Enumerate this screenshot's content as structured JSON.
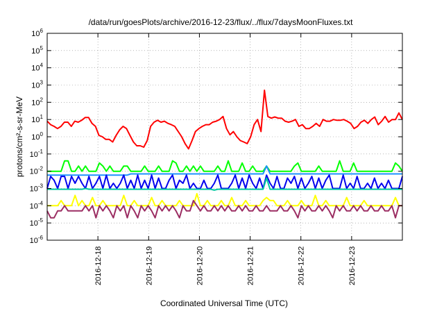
{
  "chart_data": {
    "type": "line",
    "title": "/data/run/goesPlots/archive/2016-12-23/flux/../flux/7daysMoonFluxes.txt",
    "xlabel": "Coordinated Universal Time (UTC)",
    "ylabel": "protons/cm²-s-sr-MeV",
    "yscale": "log",
    "ylim": [
      1e-06,
      1000000.0
    ],
    "y_tick_labels": [
      {
        "value": 1e-06,
        "base": "10",
        "exp": "-6"
      },
      {
        "value": 1e-05,
        "base": "10",
        "exp": "-5"
      },
      {
        "value": 0.0001,
        "base": "10",
        "exp": "-4"
      },
      {
        "value": 0.001,
        "base": "10",
        "exp": "-3"
      },
      {
        "value": 0.01,
        "base": "10",
        "exp": "-2"
      },
      {
        "value": 0.1,
        "base": "10",
        "exp": "-1"
      },
      {
        "value": 1,
        "base": "10",
        "exp": "0"
      },
      {
        "value": 10,
        "base": "10",
        "exp": "1"
      },
      {
        "value": 100,
        "base": "10",
        "exp": "2"
      },
      {
        "value": 1000,
        "base": "10",
        "exp": "3"
      },
      {
        "value": 10000,
        "base": "10",
        "exp": "4"
      },
      {
        "value": 100000,
        "base": "10",
        "exp": "5"
      },
      {
        "value": 1000000,
        "base": "10",
        "exp": "6"
      }
    ],
    "x_range": [
      "2016-12-17 00:00",
      "2016-12-24 00:00"
    ],
    "x_ticks": [
      "2016-12-18",
      "2016-12-19",
      "2016-12-20",
      "2016-12-21",
      "2016-12-22",
      "2016-12-23"
    ],
    "grid": true,
    "series": [
      {
        "color": "#ff0000",
        "values": [
          8,
          5,
          4,
          3,
          4,
          7,
          7,
          4,
          8,
          7,
          9,
          13,
          13,
          6,
          4,
          1.2,
          1,
          0.7,
          0.7,
          0.5,
          1.2,
          2.5,
          4,
          3,
          1.2,
          0.5,
          0.3,
          0.3,
          0.25,
          0.6,
          4,
          7,
          9,
          7,
          8,
          6,
          5,
          4,
          2,
          1,
          0.4,
          0.2,
          0.6,
          2,
          3,
          4,
          5,
          5,
          7,
          8,
          10,
          15,
          3,
          1.3,
          2,
          1,
          0.6,
          0.5,
          0.4,
          1,
          5,
          10,
          2,
          500,
          15,
          12,
          14,
          12,
          12,
          8,
          7,
          8,
          10,
          4,
          5,
          3,
          3,
          4,
          6,
          4,
          10,
          8,
          8,
          10,
          9,
          9,
          10,
          8,
          6,
          3,
          4,
          7,
          9,
          6,
          10,
          14,
          5,
          8,
          15,
          7,
          10,
          10,
          24,
          10
        ]
      },
      {
        "color": "#00ff00",
        "values": [
          0.01,
          0.01,
          0.01,
          0.01,
          0.01,
          0.04,
          0.04,
          0.01,
          0.01,
          0.02,
          0.01,
          0.02,
          0.01,
          0.01,
          0.01,
          0.03,
          0.02,
          0.01,
          0.02,
          0.01,
          0.01,
          0.01,
          0.02,
          0.02,
          0.01,
          0.01,
          0.01,
          0.01,
          0.02,
          0.01,
          0.01,
          0.01,
          0.02,
          0.01,
          0.01,
          0.01,
          0.04,
          0.03,
          0.01,
          0.01,
          0.02,
          0.01,
          0.02,
          0.01,
          0.02,
          0.01,
          0.01,
          0.01,
          0.01,
          0.02,
          0.01,
          0.01,
          0.04,
          0.01,
          0.01,
          0.01,
          0.03,
          0.01,
          0.01,
          0.02,
          0.01,
          0.01,
          0.01,
          0.02,
          0.01,
          0.01,
          0.01,
          0.01,
          0.01,
          0.01,
          0.01,
          0.02,
          0.03,
          0.01,
          0.01,
          0.01,
          0.01,
          0.01,
          0.02,
          0.01,
          0.01,
          0.01,
          0.01,
          0.01,
          0.04,
          0.01,
          0.01,
          0.01,
          0.03,
          0.01,
          0.01,
          0.01,
          0.01,
          0.01,
          0.01,
          0.01,
          0.01,
          0.01,
          0.01,
          0.01,
          0.03,
          0.02,
          0.01
        ]
      },
      {
        "color": "#1e90ff",
        "values": [
          0.006,
          0.006,
          0.006,
          0.006,
          0.006,
          0.006,
          0.006,
          0.006,
          0.006,
          0.006,
          0.006,
          0.006,
          0.006,
          0.006,
          0.006,
          0.006,
          0.006,
          0.006,
          0.006,
          0.006,
          0.006,
          0.006,
          0.006,
          0.006,
          0.007,
          0.007,
          0.007,
          0.007,
          0.007,
          0.007,
          0.007,
          0.007,
          0.007,
          0.007,
          0.007,
          0.007,
          0.007,
          0.007,
          0.007,
          0.007,
          0.007,
          0.007,
          0.007,
          0.007,
          0.007,
          0.007,
          0.007,
          0.007,
          0.007,
          0.007,
          0.007,
          0.007,
          0.007,
          0.007,
          0.007,
          0.007,
          0.007,
          0.007,
          0.007,
          0.007,
          0.007,
          0.007,
          0.007,
          0.02,
          0.007,
          0.007,
          0.007,
          0.007,
          0.007,
          0.007,
          0.007,
          0.007,
          0.007,
          0.007,
          0.007,
          0.007,
          0.007,
          0.007,
          0.007,
          0.007,
          0.007,
          0.007,
          0.007,
          0.007,
          0.007,
          0.007,
          0.007,
          0.007,
          0.007,
          0.007,
          0.007,
          0.007,
          0.007,
          0.007,
          0.007,
          0.007,
          0.007,
          0.007,
          0.007,
          0.007,
          0.007,
          0.007,
          0.007
        ]
      },
      {
        "color": "#0000ee",
        "values": [
          0.001,
          0.005,
          0.003,
          0.001,
          0.005,
          0.005,
          0.001,
          0.005,
          0.002,
          0.005,
          0.002,
          0.001,
          0.005,
          0.001,
          0.002,
          0.005,
          0.001,
          0.006,
          0.001,
          0.002,
          0.001,
          0.002,
          0.006,
          0.001,
          0.003,
          0.001,
          0.006,
          0.001,
          0.003,
          0.001,
          0.006,
          0.001,
          0.004,
          0.001,
          0.001,
          0.003,
          0.006,
          0.001,
          0.003,
          0.002,
          0.006,
          0.001,
          0.002,
          0.001,
          0.001,
          0.003,
          0.001,
          0.001,
          0.002,
          0.006,
          0.001,
          0.001,
          0.001,
          0.002,
          0.006,
          0.001,
          0.004,
          0.001,
          0.006,
          0.002,
          0.001,
          0.004,
          0.001,
          0.006,
          0.002,
          0.001,
          0.005,
          0.001,
          0.001,
          0.004,
          0.002,
          0.005,
          0.001,
          0.004,
          0.001,
          0.002,
          0.005,
          0.001,
          0.004,
          0.001,
          0.003,
          0.006,
          0.001,
          0.001,
          0.001,
          0.006,
          0.001,
          0.002,
          0.001,
          0.005,
          0.001,
          0.001,
          0.002,
          0.001,
          0.004,
          0.001,
          0.002,
          0.001,
          0.003,
          0.001,
          0.001,
          0.001,
          0.005
        ]
      },
      {
        "color": "#00c8a0",
        "values": [
          0.0009,
          0.0009,
          0.0009,
          0.0009,
          0.0009,
          0.0009,
          0.0009,
          0.0009,
          0.0009,
          0.0009,
          0.0009,
          0.001,
          0.0009,
          0.0009,
          0.0009,
          0.0009,
          0.0009,
          0.0009,
          0.0009,
          0.0009,
          0.0009,
          0.0009,
          0.0009,
          0.0009,
          0.0009,
          0.0009,
          0.0009,
          0.0009,
          0.0009,
          0.0009,
          0.0009,
          0.0009,
          0.0009,
          0.0009,
          0.0009,
          0.0009,
          0.0009,
          0.0009,
          0.0009,
          0.0009,
          0.0009,
          0.0009,
          0.0009,
          0.0009,
          0.0009,
          0.0009,
          0.0009,
          0.0009,
          0.0008,
          0.0009,
          0.0009,
          0.0009,
          0.0009,
          0.0009,
          0.0009,
          0.0009,
          0.0009,
          0.0009,
          0.0009,
          0.0009,
          0.0009,
          0.0009,
          0.0009,
          0.004,
          0.0009,
          0.0009,
          0.0009,
          0.0009,
          0.0009,
          0.0009,
          0.0009,
          0.0009,
          0.0009,
          0.0009,
          0.0009,
          0.0009,
          0.0009,
          0.0009,
          0.0009,
          0.0009,
          0.0009,
          0.0009,
          0.0009,
          0.0009,
          0.0009,
          0.0009,
          0.0009,
          0.0009,
          0.0009,
          0.0009,
          0.0009,
          0.0009,
          0.0009,
          0.0009,
          0.0009,
          0.0009,
          0.0009,
          0.0009,
          0.0009,
          0.0009,
          0.0009,
          0.0009,
          0.0009
        ]
      },
      {
        "color": "#ffff00",
        "values": [
          0.0001,
          0.0001,
          0.0001,
          0.0001,
          0.0002,
          0.0001,
          0.0001,
          0.0001,
          0.0004,
          0.0001,
          0.0002,
          0.0001,
          0.0001,
          0.0003,
          0.0001,
          0.0001,
          0.0002,
          0.0001,
          0.0001,
          0.0001,
          0.0001,
          0.0001,
          0.0004,
          0.0001,
          0.0001,
          0.0002,
          0.0001,
          0.0001,
          0.0001,
          0.0001,
          0.0003,
          0.0001,
          0.0001,
          0.0002,
          0.0001,
          0.0001,
          0.0001,
          0.0001,
          0.0002,
          0.0001,
          0.0001,
          0.0001,
          0.0001,
          0.0005,
          0.0001,
          0.0001,
          0.0002,
          0.0001,
          0.0001,
          0.0001,
          0.0002,
          0.0001,
          0.0001,
          0.0003,
          0.0001,
          0.0001,
          0.0001,
          0.0002,
          0.0001,
          0.0001,
          0.0001,
          0.0001,
          0.0002,
          0.0003,
          0.0002,
          0.0002,
          0.0001,
          0.0001,
          0.0001,
          0.0002,
          0.0001,
          0.0001,
          0.0001,
          0.0002,
          0.0001,
          0.0001,
          0.0001,
          0.0004,
          0.0001,
          0.0001,
          0.0002,
          0.0001,
          0.0001,
          0.0001,
          0.0001,
          0.0001,
          0.0003,
          0.0001,
          0.0001,
          0.0001,
          0.0001,
          0.0002,
          0.0001,
          0.0001,
          0.0001,
          0.0001,
          0.0001,
          0.0001,
          0.0001,
          0.0001,
          0.0003,
          0.0001,
          0.0001
        ]
      },
      {
        "color": "#9b2d62",
        "values": [
          5e-05,
          2e-05,
          2e-05,
          5e-05,
          5e-05,
          0.0001,
          5e-05,
          5e-05,
          5e-05,
          5e-05,
          5e-05,
          0.0001,
          5e-05,
          0.0001,
          2e-05,
          0.0001,
          5e-05,
          0.0001,
          5e-05,
          2e-05,
          0.0001,
          5e-05,
          0.0001,
          2e-05,
          0.0001,
          5e-05,
          2e-05,
          0.0001,
          5e-05,
          0.0001,
          5e-05,
          2e-05,
          0.0001,
          5e-05,
          0.0001,
          5e-05,
          0.0001,
          5e-05,
          2e-05,
          0.0001,
          5e-05,
          5e-05,
          0.0002,
          0.0001,
          5e-05,
          0.0001,
          5e-05,
          5e-05,
          0.0001,
          5e-05,
          0.0001,
          5e-05,
          0.0001,
          5e-05,
          5e-05,
          0.0001,
          5e-05,
          0.0001,
          5e-05,
          5e-05,
          0.0001,
          5e-05,
          5e-05,
          0.0001,
          5e-05,
          5e-05,
          5e-05,
          0.0001,
          5e-05,
          5e-05,
          0.0001,
          5e-05,
          2e-05,
          0.0001,
          5e-05,
          0.0001,
          5e-05,
          5e-05,
          0.0001,
          5e-05,
          0.0001,
          5e-05,
          2e-05,
          0.0001,
          5e-05,
          0.0001,
          5e-05,
          5e-05,
          0.0001,
          5e-05,
          0.0001,
          5e-05,
          5e-05,
          0.0001,
          5e-05,
          5e-05,
          0.0001,
          5e-05,
          5e-05,
          0.0001,
          2e-05,
          0.0001,
          0.0001
        ]
      }
    ]
  }
}
